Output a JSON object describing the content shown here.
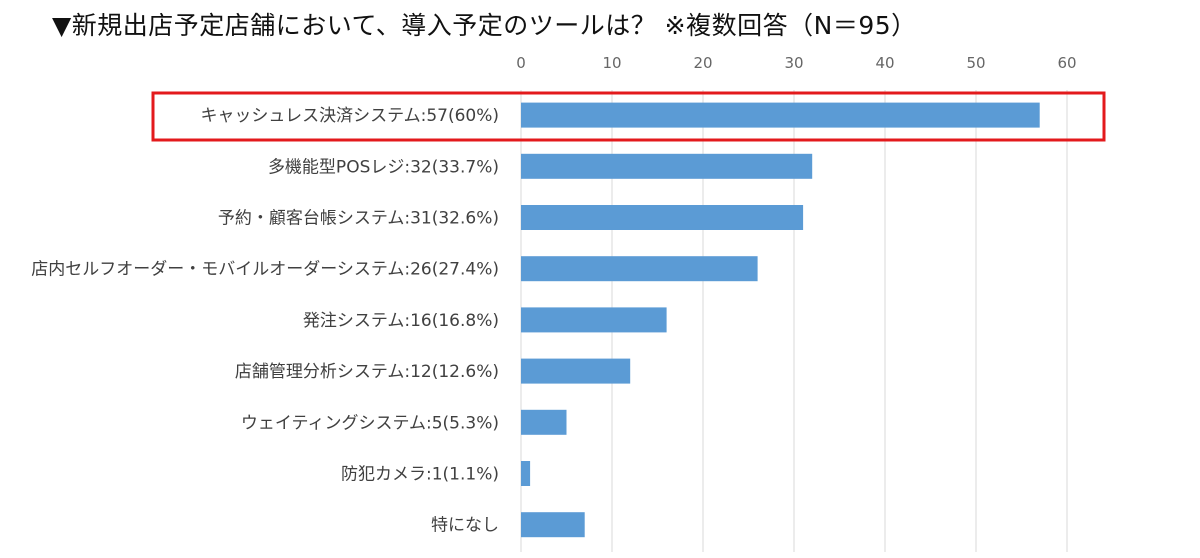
{
  "title": "▼新規出店予定店舗において、導入予定のツールは？ ※複数回答（N＝95）",
  "chart_data": {
    "type": "bar",
    "orientation": "horizontal",
    "title": "▼新規出店予定店舗において、導入予定のツールは？ ※複数回答（N＝95）",
    "categories": [
      "キャッシュレス決済システム:57(60%)",
      "多機能型POSレジ:32(33.7%)",
      "予約・顧客台帳システム:31(32.6%)",
      "店内セルフオーダー・モバイルオーダーシステム:26(27.4%)",
      "発注システム:16(16.8%)",
      "店舗管理分析システム:12(12.6%)",
      "ウェイティングシステム:5(5.3%)",
      "防犯カメラ:1(1.1%)",
      "特になし"
    ],
    "values": [
      57,
      32,
      31,
      26,
      16,
      12,
      5,
      1,
      7
    ],
    "xlim": [
      0,
      60
    ],
    "xticks": [
      0,
      10,
      20,
      30,
      40,
      50,
      60
    ],
    "highlight_index": 0,
    "colors": {
      "bar": "#5b9bd5",
      "highlight": "#e31a1c",
      "grid": "#d9d9d9"
    },
    "xlabel": "",
    "ylabel": ""
  }
}
